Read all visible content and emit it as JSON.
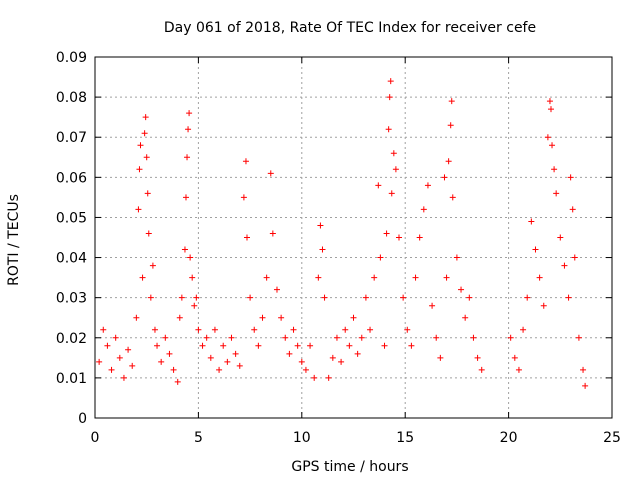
{
  "chart_data": {
    "type": "scatter",
    "title": "Day 061 of 2018, Rate Of TEC Index for receiver cefe",
    "xlabel": "GPS time / hours",
    "ylabel": "ROTI / TECUs",
    "xlim": [
      0,
      25
    ],
    "ylim": [
      0,
      0.09
    ],
    "xticks": [
      0,
      5,
      10,
      15,
      20,
      25
    ],
    "xtick_labels": [
      "0",
      "5",
      "10",
      "15",
      "20",
      "25"
    ],
    "yticks": [
      0,
      0.01,
      0.02,
      0.03,
      0.04,
      0.05,
      0.06,
      0.07,
      0.08,
      0.09
    ],
    "ytick_labels": [
      "0",
      "0.01",
      "0.02",
      "0.03",
      "0.04",
      "0.05",
      "0.06",
      "0.07",
      "0.08",
      "0.09"
    ],
    "grid": true,
    "marker": "+",
    "marker_color": "#ff0000",
    "series": [
      {
        "name": "ROTI",
        "points": [
          [
            0.2,
            0.014
          ],
          [
            0.4,
            0.022
          ],
          [
            0.6,
            0.018
          ],
          [
            0.8,
            0.012
          ],
          [
            1.0,
            0.02
          ],
          [
            1.2,
            0.015
          ],
          [
            1.4,
            0.01
          ],
          [
            1.6,
            0.017
          ],
          [
            1.8,
            0.013
          ],
          [
            2.0,
            0.025
          ],
          [
            2.1,
            0.052
          ],
          [
            2.15,
            0.062
          ],
          [
            2.2,
            0.068
          ],
          [
            2.3,
            0.035
          ],
          [
            2.4,
            0.071
          ],
          [
            2.45,
            0.075
          ],
          [
            2.5,
            0.065
          ],
          [
            2.55,
            0.056
          ],
          [
            2.6,
            0.046
          ],
          [
            2.7,
            0.03
          ],
          [
            2.8,
            0.038
          ],
          [
            2.9,
            0.022
          ],
          [
            3.0,
            0.018
          ],
          [
            3.2,
            0.014
          ],
          [
            3.4,
            0.02
          ],
          [
            3.6,
            0.016
          ],
          [
            3.8,
            0.012
          ],
          [
            4.0,
            0.009
          ],
          [
            4.1,
            0.025
          ],
          [
            4.2,
            0.03
          ],
          [
            4.35,
            0.042
          ],
          [
            4.4,
            0.055
          ],
          [
            4.45,
            0.065
          ],
          [
            4.5,
            0.072
          ],
          [
            4.55,
            0.076
          ],
          [
            4.6,
            0.04
          ],
          [
            4.7,
            0.035
          ],
          [
            4.8,
            0.028
          ],
          [
            4.9,
            0.03
          ],
          [
            5.0,
            0.022
          ],
          [
            5.2,
            0.018
          ],
          [
            5.4,
            0.02
          ],
          [
            5.6,
            0.015
          ],
          [
            5.8,
            0.022
          ],
          [
            6.0,
            0.012
          ],
          [
            6.2,
            0.018
          ],
          [
            6.4,
            0.014
          ],
          [
            6.6,
            0.02
          ],
          [
            6.8,
            0.016
          ],
          [
            7.0,
            0.013
          ],
          [
            7.2,
            0.055
          ],
          [
            7.3,
            0.064
          ],
          [
            7.35,
            0.045
          ],
          [
            7.5,
            0.03
          ],
          [
            7.7,
            0.022
          ],
          [
            7.9,
            0.018
          ],
          [
            8.1,
            0.025
          ],
          [
            8.3,
            0.035
          ],
          [
            8.5,
            0.061
          ],
          [
            8.6,
            0.046
          ],
          [
            8.8,
            0.032
          ],
          [
            9.0,
            0.025
          ],
          [
            9.2,
            0.02
          ],
          [
            9.4,
            0.016
          ],
          [
            9.6,
            0.022
          ],
          [
            9.8,
            0.018
          ],
          [
            10.0,
            0.014
          ],
          [
            10.2,
            0.012
          ],
          [
            10.4,
            0.018
          ],
          [
            10.6,
            0.01
          ],
          [
            10.8,
            0.035
          ],
          [
            10.9,
            0.048
          ],
          [
            11.0,
            0.042
          ],
          [
            11.1,
            0.03
          ],
          [
            11.3,
            0.01
          ],
          [
            11.5,
            0.015
          ],
          [
            11.7,
            0.02
          ],
          [
            11.9,
            0.014
          ],
          [
            12.1,
            0.022
          ],
          [
            12.3,
            0.018
          ],
          [
            12.5,
            0.025
          ],
          [
            12.7,
            0.016
          ],
          [
            12.9,
            0.02
          ],
          [
            13.1,
            0.03
          ],
          [
            13.3,
            0.022
          ],
          [
            13.5,
            0.035
          ],
          [
            13.7,
            0.058
          ],
          [
            13.8,
            0.04
          ],
          [
            14.0,
            0.018
          ],
          [
            14.1,
            0.046
          ],
          [
            14.2,
            0.072
          ],
          [
            14.25,
            0.08
          ],
          [
            14.3,
            0.084
          ],
          [
            14.35,
            0.056
          ],
          [
            14.45,
            0.066
          ],
          [
            14.55,
            0.062
          ],
          [
            14.7,
            0.045
          ],
          [
            14.9,
            0.03
          ],
          [
            15.1,
            0.022
          ],
          [
            15.3,
            0.018
          ],
          [
            15.5,
            0.035
          ],
          [
            15.7,
            0.045
          ],
          [
            15.9,
            0.052
          ],
          [
            16.1,
            0.058
          ],
          [
            16.3,
            0.028
          ],
          [
            16.5,
            0.02
          ],
          [
            16.7,
            0.015
          ],
          [
            16.9,
            0.06
          ],
          [
            17.0,
            0.035
          ],
          [
            17.1,
            0.064
          ],
          [
            17.2,
            0.073
          ],
          [
            17.25,
            0.079
          ],
          [
            17.3,
            0.055
          ],
          [
            17.5,
            0.04
          ],
          [
            17.7,
            0.032
          ],
          [
            17.9,
            0.025
          ],
          [
            18.1,
            0.03
          ],
          [
            18.3,
            0.02
          ],
          [
            18.5,
            0.015
          ],
          [
            18.7,
            0.012
          ],
          [
            20.1,
            0.02
          ],
          [
            20.3,
            0.015
          ],
          [
            20.5,
            0.012
          ],
          [
            20.7,
            0.022
          ],
          [
            20.9,
            0.03
          ],
          [
            21.1,
            0.049
          ],
          [
            21.3,
            0.042
          ],
          [
            21.5,
            0.035
          ],
          [
            21.7,
            0.028
          ],
          [
            21.9,
            0.07
          ],
          [
            22.0,
            0.079
          ],
          [
            22.05,
            0.077
          ],
          [
            22.1,
            0.068
          ],
          [
            22.2,
            0.062
          ],
          [
            22.3,
            0.056
          ],
          [
            22.5,
            0.045
          ],
          [
            22.7,
            0.038
          ],
          [
            22.9,
            0.03
          ],
          [
            23.0,
            0.06
          ],
          [
            23.1,
            0.052
          ],
          [
            23.2,
            0.04
          ],
          [
            23.4,
            0.02
          ],
          [
            23.6,
            0.012
          ],
          [
            23.7,
            0.008
          ]
        ]
      }
    ]
  }
}
